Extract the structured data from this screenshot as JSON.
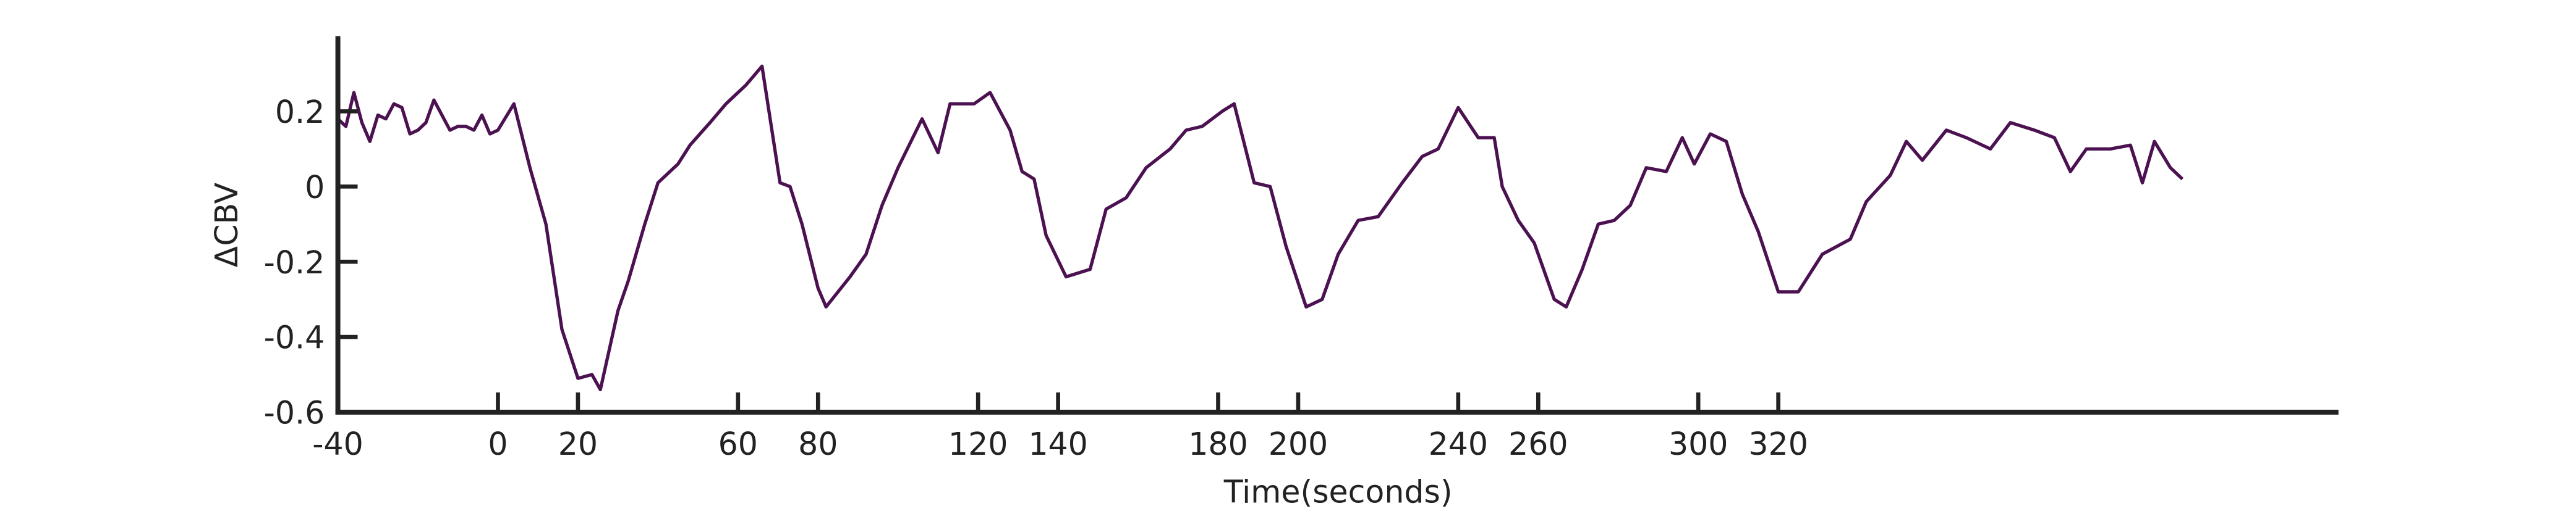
{
  "chart_data": {
    "type": "line",
    "x_label": "Time(seconds)",
    "y_label": "ΔCBV",
    "xlim": [
      -40,
      460
    ],
    "ylim": [
      -0.6,
      0.4
    ],
    "xticks": [
      -40,
      0,
      20,
      60,
      80,
      120,
      140,
      180,
      200,
      240,
      260,
      300,
      320
    ],
    "yticks": [
      -0.6,
      -0.4,
      -0.2,
      0,
      0.2
    ],
    "series": [
      {
        "color": "#4b1150",
        "x": [
          -40,
          -38,
          -36,
          -34,
          -32,
          -30,
          -28,
          -26,
          -24,
          -22,
          -20,
          -18,
          -16,
          -14,
          -12,
          -10,
          -8,
          -6,
          -4,
          -2,
          0,
          4,
          8,
          12,
          16,
          20,
          23.5,
          25.6,
          30,
          32.6,
          36.7,
          40,
          45,
          48,
          53,
          57,
          62,
          66,
          70.5,
          73,
          76,
          80,
          82,
          88,
          92,
          96,
          100,
          106,
          110,
          113,
          119,
          123,
          128,
          131,
          134,
          137,
          142,
          148,
          152,
          157,
          162,
          168,
          172,
          176,
          181,
          184,
          189,
          193,
          197,
          202,
          206,
          210,
          215,
          220,
          226,
          231,
          235,
          240,
          245,
          249,
          251,
          255,
          259,
          264,
          267,
          271,
          275,
          279,
          283,
          287,
          292,
          296,
          299,
          303,
          307,
          311,
          315,
          320,
          325,
          331,
          338,
          342,
          348,
          352,
          356,
          362,
          367,
          373,
          378,
          384,
          389,
          393,
          397,
          403,
          408,
          411,
          414,
          418,
          421
        ],
        "values": [
          0.18,
          0.16,
          0.25,
          0.17,
          0.12,
          0.19,
          0.18,
          0.22,
          0.21,
          0.14,
          0.15,
          0.17,
          0.23,
          0.19,
          0.15,
          0.16,
          0.16,
          0.15,
          0.19,
          0.14,
          0.15,
          0.22,
          0.05,
          -0.1,
          -0.38,
          -0.51,
          -0.5,
          -0.54,
          -0.33,
          -0.25,
          -0.1,
          0.01,
          0.06,
          0.11,
          0.17,
          0.22,
          0.27,
          0.32,
          0.01,
          0.0,
          -0.1,
          -0.27,
          -0.32,
          -0.24,
          -0.18,
          -0.05,
          0.05,
          0.18,
          0.09,
          0.22,
          0.22,
          0.25,
          0.15,
          0.04,
          0.02,
          -0.13,
          -0.24,
          -0.22,
          -0.06,
          -0.03,
          0.05,
          0.1,
          0.15,
          0.16,
          0.2,
          0.22,
          0.01,
          0.0,
          -0.16,
          -0.32,
          -0.3,
          -0.18,
          -0.09,
          -0.08,
          0.01,
          0.08,
          0.1,
          0.21,
          0.13,
          0.13,
          0.0,
          -0.09,
          -0.15,
          -0.3,
          -0.32,
          -0.22,
          -0.1,
          -0.09,
          -0.05,
          0.05,
          0.04,
          0.13,
          0.06,
          0.14,
          0.12,
          -0.02,
          -0.12,
          -0.28,
          -0.28,
          -0.18,
          -0.14,
          -0.04,
          0.03,
          0.12,
          0.07,
          0.15,
          0.13,
          0.1,
          0.17,
          0.15,
          0.13,
          0.04,
          0.1,
          0.1,
          0.11,
          0.01,
          0.12,
          0.05,
          0.02
        ]
      }
    ]
  }
}
